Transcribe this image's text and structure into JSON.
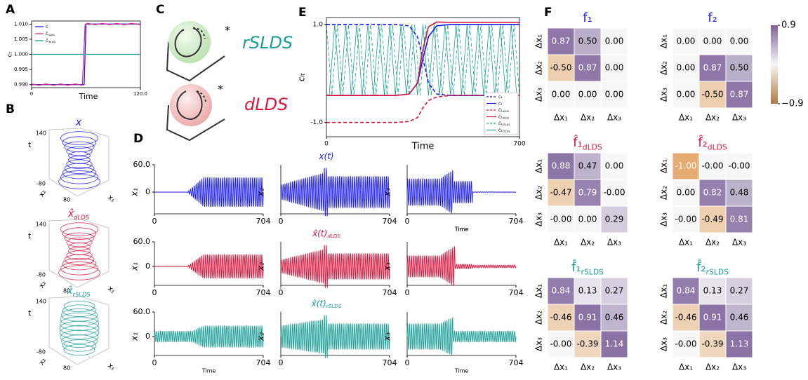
{
  "panel_a": {
    "label": "A",
    "xlabel": "Time",
    "ylabel": "cₜ",
    "xlim": [
      0,
      120
    ],
    "ylim": [
      0.989,
      1.011
    ],
    "xticks": [
      0,
      {
        "value": 120,
        "label": "120.0"
      }
    ],
    "yticks": [
      {
        "value": 0.99,
        "label": "0.990"
      },
      {
        "value": 0.995,
        "label": "0.995"
      },
      {
        "value": 1,
        "label": "1.000"
      },
      {
        "value": 1.005,
        "label": "1.005"
      },
      {
        "value": 1.01,
        "label": "1.010"
      }
    ],
    "series": [
      {
        "name": "c",
        "color": "#1a1aff",
        "x": [
          0,
          58,
          60,
          120
        ],
        "values": [
          0.99,
          0.99,
          1.01,
          1.01
        ]
      },
      {
        "name": "ĉ",
        "sub": "dLDS",
        "color": "#d6307a",
        "x": [
          0,
          8,
          16,
          24,
          32,
          40,
          48,
          56,
          59,
          62,
          70,
          78,
          86,
          94,
          102,
          110,
          120
        ],
        "values": [
          0.9902,
          0.9898,
          0.9902,
          0.9898,
          0.9902,
          0.9898,
          0.9902,
          0.9898,
          1.0098,
          1.0102,
          1.0098,
          1.0102,
          1.0098,
          1.0102,
          1.0098,
          1.0102,
          1.0098
        ]
      },
      {
        "name": "ĉ",
        "sub": "rSLDS",
        "color": "#1a9e96",
        "x": [
          0,
          120
        ],
        "values": [
          1,
          1
        ]
      }
    ]
  },
  "panel_b": {
    "label": "B",
    "tick_top": "140",
    "t_label": "t",
    "tick_neg": "-80",
    "tick_pos": "80",
    "x2_label": "x₂",
    "x1_label": "x₁",
    "plots": [
      {
        "title": "x",
        "color": "#1a1aff"
      },
      {
        "title": "x̂",
        "sub": "dLDS",
        "color": "#dc143c"
      },
      {
        "title": "x̂",
        "sub": "rSLDS",
        "color": "#1a9e96"
      }
    ]
  },
  "panel_c": {
    "label": "C",
    "rslds": "rSLDS",
    "dlds": "dLDS"
  },
  "panel_d": {
    "label": "D",
    "xlabel": "Time",
    "xticks": [
      0,
      704
    ],
    "yticks": [
      0,
      {
        "value": 60,
        "label": "60.0"
      }
    ],
    "ylabels": [
      "x₁",
      "x₂",
      "x₃"
    ],
    "rows": [
      {
        "title": "x(t)",
        "color": "#1a1aff"
      },
      {
        "title": "x̂(t)",
        "sub": "dLDS",
        "color": "#dc143c"
      },
      {
        "title": "x̂(t)",
        "sub": "rSLDS",
        "color": "#1a9e96"
      }
    ]
  },
  "panel_e": {
    "label": "E",
    "xlabel": "Time",
    "ylabel": "cₗₜ",
    "xlim": [
      0,
      700
    ],
    "ylim": [
      -1.29,
      1.14
    ],
    "xticks": [
      0,
      700
    ],
    "yticks": [
      {
        "value": 1,
        "label": "1.0"
      },
      {
        "value": -1,
        "label": "-1.0"
      }
    ],
    "series": [
      {
        "name": "c₁",
        "color": "#1a1aff",
        "dash": true,
        "x": [
          0,
          250,
          300,
          330,
          350,
          370,
          400,
          450,
          700
        ],
        "values": [
          1,
          1,
          0.97,
          0.75,
          0.3,
          -0.2,
          -0.42,
          -0.45,
          -0.45
        ]
      },
      {
        "name": "c₂",
        "color": "#1a1aff",
        "dash": false,
        "x": [
          0,
          250,
          300,
          330,
          350,
          370,
          400,
          450,
          700
        ],
        "values": [
          -0.45,
          -0.45,
          -0.42,
          -0.2,
          0.3,
          0.75,
          0.97,
          1,
          1
        ]
      },
      {
        "name": "ĉ₁",
        "sub": "dLDS",
        "color": "#dc143c",
        "dash": true,
        "x": [
          0,
          250,
          300,
          330,
          350,
          370,
          400,
          450,
          700
        ],
        "values": [
          -1,
          -1,
          -0.98,
          -0.9,
          -0.7,
          -0.55,
          -0.48,
          -0.45,
          -0.45
        ]
      },
      {
        "name": "ĉ₂",
        "sub": "dLDS",
        "color": "#dc143c",
        "dash": false,
        "x": [
          0,
          250,
          300,
          330,
          350,
          370,
          400,
          450,
          700
        ],
        "values": [
          -0.45,
          -0.45,
          -0.42,
          -0.2,
          0.5,
          0.95,
          1.05,
          1.04,
          1.04
        ]
      },
      {
        "name": "ĉ₁",
        "sub": "rSLDS",
        "color": "#1a9e96",
        "dash": true,
        "x": [
          0,
          20,
          40,
          60,
          80,
          100,
          120,
          140,
          160,
          180,
          200,
          220,
          240,
          260,
          280,
          300,
          320,
          340,
          360,
          380,
          400,
          420,
          440,
          460,
          480,
          500,
          520,
          540,
          560,
          580,
          600,
          620,
          640,
          660,
          680,
          700
        ],
        "values": [
          1,
          -0.45,
          1,
          -0.45,
          1,
          -0.45,
          1,
          -0.45,
          1,
          -0.45,
          1,
          -0.45,
          1,
          -0.45,
          1,
          -0.45,
          1,
          -0.45,
          1,
          -0.45,
          1,
          -0.45,
          1,
          -0.45,
          1,
          -0.45,
          1,
          -0.45,
          1,
          -0.45,
          1,
          -0.45,
          1,
          -0.45,
          1,
          -0.45
        ]
      },
      {
        "name": "ĉ₂",
        "sub": "rSLDS",
        "color": "#1a9e96",
        "dash": false,
        "x": [
          10,
          30,
          50,
          70,
          90,
          110,
          130,
          150,
          170,
          190,
          210,
          230,
          250,
          270,
          290,
          310,
          330,
          350,
          370,
          390,
          410,
          430,
          450,
          470,
          490,
          510,
          530,
          550,
          570,
          590,
          610,
          630,
          650,
          670,
          690
        ],
        "values": [
          -0.45,
          1,
          -0.45,
          1,
          -0.45,
          1,
          -0.45,
          1,
          -0.45,
          1,
          -0.45,
          1,
          -0.45,
          1,
          -0.45,
          1,
          -0.45,
          1,
          -0.45,
          1,
          -0.45,
          1,
          -0.45,
          1,
          -0.45,
          1,
          -0.45,
          1,
          -0.45,
          1,
          -0.45,
          1,
          -0.45,
          1,
          -0.45
        ]
      }
    ]
  },
  "panel_f": {
    "label": "F",
    "axis_labels": [
      "Δx₁",
      "Δx₂",
      "Δx₃"
    ],
    "clim": [
      -0.9,
      0.9
    ],
    "cticks": [
      0.9,
      {
        "value": -0.9,
        "label": "−0.9"
      }
    ],
    "heatmaps": [
      {
        "title": "f₁",
        "color": "#1a1aff",
        "values": [
          [
            0.87,
            0.5,
            0
          ],
          [
            -0.5,
            0.87,
            0
          ],
          [
            0,
            0,
            0
          ]
        ],
        "value_labels": [
          [
            "0.87",
            "0.50",
            "0.00"
          ],
          [
            "-0.50",
            "0.87",
            "0.00"
          ],
          [
            "0.00",
            "0.00",
            "0.00"
          ]
        ]
      },
      {
        "title": "f₂",
        "color": "#1a1aff",
        "values": [
          [
            0,
            0,
            0
          ],
          [
            0,
            0.87,
            0.5
          ],
          [
            0,
            -0.5,
            0.87
          ]
        ],
        "value_labels": [
          [
            "0.00",
            "0.00",
            "0.00"
          ],
          [
            "0.00",
            "0.87",
            "0.50"
          ],
          [
            "0.00",
            "-0.50",
            "0.87"
          ]
        ]
      },
      {
        "title": "f̂₁",
        "sub": "dLDS",
        "color": "#dc143c",
        "values": [
          [
            0.88,
            0.47,
            0
          ],
          [
            -0.47,
            0.79,
            0
          ],
          [
            0,
            0,
            0.29
          ]
        ],
        "value_labels": [
          [
            "0.88",
            "0.47",
            "0.00"
          ],
          [
            "-0.47",
            "0.79",
            "-0.00"
          ],
          [
            "-0.00",
            "0.00",
            "0.29"
          ]
        ]
      },
      {
        "title": "f̂₂",
        "sub": "dLDS",
        "color": "#dc143c",
        "values": [
          [
            -1,
            0,
            0
          ],
          [
            0,
            0.82,
            0.48
          ],
          [
            0,
            -0.49,
            0.81
          ]
        ],
        "value_labels": [
          [
            "-1.00",
            "-0.00",
            "-0.00"
          ],
          [
            "0.00",
            "0.82",
            "0.48"
          ],
          [
            "-0.00",
            "-0.49",
            "0.81"
          ]
        ]
      },
      {
        "title": "f̂₁",
        "sub": "rSLDS",
        "color": "#1a9e96",
        "values": [
          [
            0.84,
            0.13,
            0.27
          ],
          [
            -0.46,
            0.91,
            0.46
          ],
          [
            0,
            -0.39,
            1.14
          ]
        ],
        "value_labels": [
          [
            "0.84",
            "0.13",
            "0.27"
          ],
          [
            "-0.46",
            "0.91",
            "0.46"
          ],
          [
            "-0.00",
            "-0.39",
            "1.14"
          ]
        ]
      },
      {
        "title": "f̂₂",
        "sub": "rSLDS",
        "color": "#1a9e96",
        "values": [
          [
            0.84,
            0.13,
            0.27
          ],
          [
            -0.46,
            0.91,
            0.46
          ],
          [
            0,
            -0.39,
            1.13
          ]
        ],
        "value_labels": [
          [
            "0.84",
            "0.13",
            "0.27"
          ],
          [
            "-0.46",
            "0.91",
            "0.46"
          ],
          [
            "-0.00",
            "-0.39",
            "1.13"
          ]
        ]
      }
    ]
  }
}
